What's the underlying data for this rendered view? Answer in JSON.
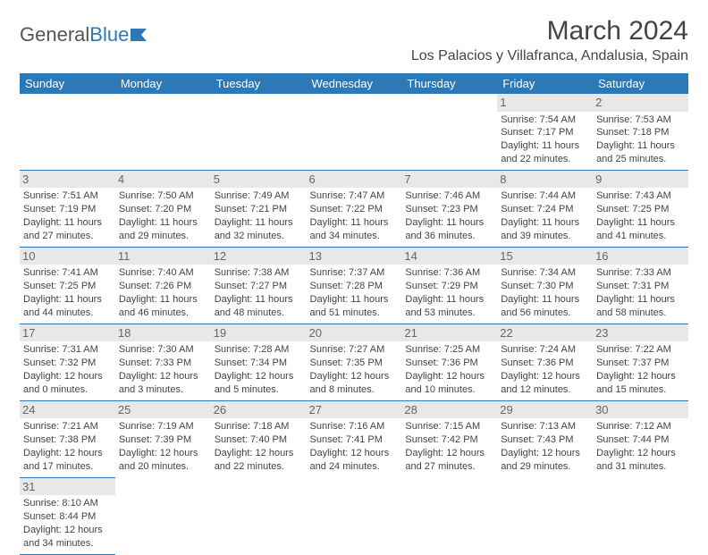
{
  "brand": {
    "part1": "General",
    "part2": "Blue"
  },
  "title": "March 2024",
  "location": "Los Palacios y Villafranca, Andalusia, Spain",
  "colors": {
    "accent": "#2d79b5",
    "header_text": "#ffffff",
    "daynum_bg": "#e8e8e8",
    "text": "#444"
  },
  "weekdays": [
    "Sunday",
    "Monday",
    "Tuesday",
    "Wednesday",
    "Thursday",
    "Friday",
    "Saturday"
  ],
  "weeks": [
    [
      null,
      null,
      null,
      null,
      null,
      {
        "d": "1",
        "sr": "Sunrise: 7:54 AM",
        "ss": "Sunset: 7:17 PM",
        "dl1": "Daylight: 11 hours",
        "dl2": "and 22 minutes."
      },
      {
        "d": "2",
        "sr": "Sunrise: 7:53 AM",
        "ss": "Sunset: 7:18 PM",
        "dl1": "Daylight: 11 hours",
        "dl2": "and 25 minutes."
      }
    ],
    [
      {
        "d": "3",
        "sr": "Sunrise: 7:51 AM",
        "ss": "Sunset: 7:19 PM",
        "dl1": "Daylight: 11 hours",
        "dl2": "and 27 minutes."
      },
      {
        "d": "4",
        "sr": "Sunrise: 7:50 AM",
        "ss": "Sunset: 7:20 PM",
        "dl1": "Daylight: 11 hours",
        "dl2": "and 29 minutes."
      },
      {
        "d": "5",
        "sr": "Sunrise: 7:49 AM",
        "ss": "Sunset: 7:21 PM",
        "dl1": "Daylight: 11 hours",
        "dl2": "and 32 minutes."
      },
      {
        "d": "6",
        "sr": "Sunrise: 7:47 AM",
        "ss": "Sunset: 7:22 PM",
        "dl1": "Daylight: 11 hours",
        "dl2": "and 34 minutes."
      },
      {
        "d": "7",
        "sr": "Sunrise: 7:46 AM",
        "ss": "Sunset: 7:23 PM",
        "dl1": "Daylight: 11 hours",
        "dl2": "and 36 minutes."
      },
      {
        "d": "8",
        "sr": "Sunrise: 7:44 AM",
        "ss": "Sunset: 7:24 PM",
        "dl1": "Daylight: 11 hours",
        "dl2": "and 39 minutes."
      },
      {
        "d": "9",
        "sr": "Sunrise: 7:43 AM",
        "ss": "Sunset: 7:25 PM",
        "dl1": "Daylight: 11 hours",
        "dl2": "and 41 minutes."
      }
    ],
    [
      {
        "d": "10",
        "sr": "Sunrise: 7:41 AM",
        "ss": "Sunset: 7:25 PM",
        "dl1": "Daylight: 11 hours",
        "dl2": "and 44 minutes."
      },
      {
        "d": "11",
        "sr": "Sunrise: 7:40 AM",
        "ss": "Sunset: 7:26 PM",
        "dl1": "Daylight: 11 hours",
        "dl2": "and 46 minutes."
      },
      {
        "d": "12",
        "sr": "Sunrise: 7:38 AM",
        "ss": "Sunset: 7:27 PM",
        "dl1": "Daylight: 11 hours",
        "dl2": "and 48 minutes."
      },
      {
        "d": "13",
        "sr": "Sunrise: 7:37 AM",
        "ss": "Sunset: 7:28 PM",
        "dl1": "Daylight: 11 hours",
        "dl2": "and 51 minutes."
      },
      {
        "d": "14",
        "sr": "Sunrise: 7:36 AM",
        "ss": "Sunset: 7:29 PM",
        "dl1": "Daylight: 11 hours",
        "dl2": "and 53 minutes."
      },
      {
        "d": "15",
        "sr": "Sunrise: 7:34 AM",
        "ss": "Sunset: 7:30 PM",
        "dl1": "Daylight: 11 hours",
        "dl2": "and 56 minutes."
      },
      {
        "d": "16",
        "sr": "Sunrise: 7:33 AM",
        "ss": "Sunset: 7:31 PM",
        "dl1": "Daylight: 11 hours",
        "dl2": "and 58 minutes."
      }
    ],
    [
      {
        "d": "17",
        "sr": "Sunrise: 7:31 AM",
        "ss": "Sunset: 7:32 PM",
        "dl1": "Daylight: 12 hours",
        "dl2": "and 0 minutes."
      },
      {
        "d": "18",
        "sr": "Sunrise: 7:30 AM",
        "ss": "Sunset: 7:33 PM",
        "dl1": "Daylight: 12 hours",
        "dl2": "and 3 minutes."
      },
      {
        "d": "19",
        "sr": "Sunrise: 7:28 AM",
        "ss": "Sunset: 7:34 PM",
        "dl1": "Daylight: 12 hours",
        "dl2": "and 5 minutes."
      },
      {
        "d": "20",
        "sr": "Sunrise: 7:27 AM",
        "ss": "Sunset: 7:35 PM",
        "dl1": "Daylight: 12 hours",
        "dl2": "and 8 minutes."
      },
      {
        "d": "21",
        "sr": "Sunrise: 7:25 AM",
        "ss": "Sunset: 7:36 PM",
        "dl1": "Daylight: 12 hours",
        "dl2": "and 10 minutes."
      },
      {
        "d": "22",
        "sr": "Sunrise: 7:24 AM",
        "ss": "Sunset: 7:36 PM",
        "dl1": "Daylight: 12 hours",
        "dl2": "and 12 minutes."
      },
      {
        "d": "23",
        "sr": "Sunrise: 7:22 AM",
        "ss": "Sunset: 7:37 PM",
        "dl1": "Daylight: 12 hours",
        "dl2": "and 15 minutes."
      }
    ],
    [
      {
        "d": "24",
        "sr": "Sunrise: 7:21 AM",
        "ss": "Sunset: 7:38 PM",
        "dl1": "Daylight: 12 hours",
        "dl2": "and 17 minutes."
      },
      {
        "d": "25",
        "sr": "Sunrise: 7:19 AM",
        "ss": "Sunset: 7:39 PM",
        "dl1": "Daylight: 12 hours",
        "dl2": "and 20 minutes."
      },
      {
        "d": "26",
        "sr": "Sunrise: 7:18 AM",
        "ss": "Sunset: 7:40 PM",
        "dl1": "Daylight: 12 hours",
        "dl2": "and 22 minutes."
      },
      {
        "d": "27",
        "sr": "Sunrise: 7:16 AM",
        "ss": "Sunset: 7:41 PM",
        "dl1": "Daylight: 12 hours",
        "dl2": "and 24 minutes."
      },
      {
        "d": "28",
        "sr": "Sunrise: 7:15 AM",
        "ss": "Sunset: 7:42 PM",
        "dl1": "Daylight: 12 hours",
        "dl2": "and 27 minutes."
      },
      {
        "d": "29",
        "sr": "Sunrise: 7:13 AM",
        "ss": "Sunset: 7:43 PM",
        "dl1": "Daylight: 12 hours",
        "dl2": "and 29 minutes."
      },
      {
        "d": "30",
        "sr": "Sunrise: 7:12 AM",
        "ss": "Sunset: 7:44 PM",
        "dl1": "Daylight: 12 hours",
        "dl2": "and 31 minutes."
      }
    ],
    [
      {
        "d": "31",
        "sr": "Sunrise: 8:10 AM",
        "ss": "Sunset: 8:44 PM",
        "dl1": "Daylight: 12 hours",
        "dl2": "and 34 minutes."
      },
      null,
      null,
      null,
      null,
      null,
      null
    ]
  ]
}
